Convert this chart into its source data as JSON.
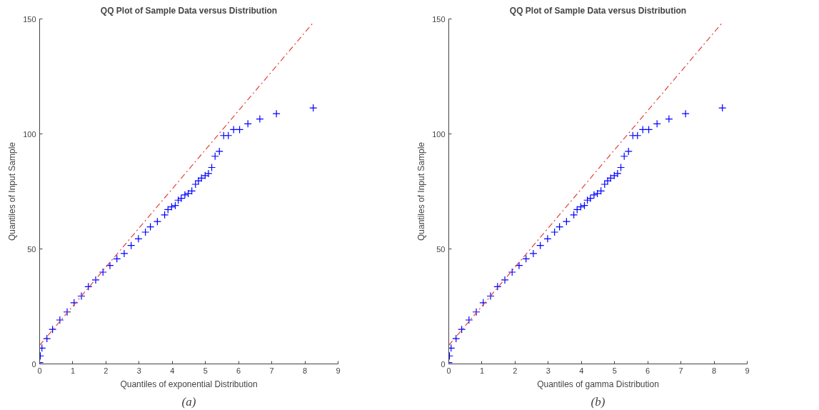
{
  "chart_data": [
    {
      "type": "scatter",
      "title": "QQ Plot of Sample Data versus Distribution",
      "xlabel": "Quantiles of exponential Distribution",
      "ylabel": "Quantiles of Input Sample",
      "annotations": [
        "(a)"
      ],
      "xlim": [
        0,
        9
      ],
      "ylim": [
        0,
        150
      ],
      "xticks": [
        0,
        1,
        2,
        3,
        4,
        5,
        6,
        7,
        8,
        9
      ],
      "yticks": [
        0,
        50,
        100,
        150
      ],
      "grid": false,
      "series": [
        {
          "marker": "cross",
          "color": "#0000ff",
          "x": [
            0,
            0.02,
            0.07,
            0.22,
            0.39,
            0.61,
            0.83,
            1.04,
            1.26,
            1.47,
            1.69,
            1.91,
            2.12,
            2.33,
            2.55,
            2.76,
            2.98,
            3.19,
            3.34,
            3.55,
            3.77,
            3.87,
            3.98,
            4.09,
            4.18,
            4.27,
            4.38,
            4.48,
            4.59,
            4.7,
            4.79,
            4.88,
            4.99,
            5.09,
            5.19,
            5.29,
            5.42,
            5.55,
            5.69,
            5.85,
            6.03,
            6.28,
            6.64,
            7.14,
            8.25
          ],
          "values": [
            0.6,
            3.5,
            6.9,
            11,
            15,
            19.1,
            22.6,
            26.6,
            29.5,
            33.6,
            36.5,
            39.9,
            42.8,
            45.7,
            48,
            51.5,
            54.4,
            57.3,
            59.6,
            61.9,
            64.8,
            67.1,
            68.3,
            68.9,
            71.2,
            72,
            73.5,
            74.1,
            75.2,
            78.1,
            79.6,
            80.8,
            81.9,
            82.8,
            85.4,
            90.3,
            92.4,
            99.3,
            99.3,
            101.9,
            101.9,
            104.4,
            106.5,
            108.8,
            111.3
          ]
        },
        {
          "type": "line",
          "marker": "none",
          "color": "#e0403a",
          "line_style": "dashed",
          "x": [
            0,
            8.25
          ],
          "values": [
            8.1,
            148.4
          ]
        }
      ]
    },
    {
      "type": "scatter",
      "title": "QQ Plot of Sample Data versus Distribution",
      "xlabel": "Quantiles of gamma Distribution",
      "ylabel": "Quantiles of Input Sample",
      "annotations": [
        "(b)"
      ],
      "xlim": [
        0,
        9
      ],
      "ylim": [
        0,
        150
      ],
      "xticks": [
        0,
        1,
        2,
        3,
        4,
        5,
        6,
        7,
        8,
        9
      ],
      "yticks": [
        0,
        50,
        100,
        150
      ],
      "grid": false,
      "series": [
        {
          "marker": "cross",
          "color": "#0000ff",
          "x": [
            0,
            0.02,
            0.07,
            0.22,
            0.39,
            0.61,
            0.83,
            1.04,
            1.26,
            1.47,
            1.69,
            1.91,
            2.12,
            2.33,
            2.55,
            2.76,
            2.98,
            3.19,
            3.34,
            3.55,
            3.77,
            3.87,
            3.98,
            4.09,
            4.18,
            4.27,
            4.38,
            4.48,
            4.59,
            4.7,
            4.79,
            4.88,
            4.99,
            5.09,
            5.19,
            5.29,
            5.42,
            5.55,
            5.69,
            5.85,
            6.03,
            6.28,
            6.64,
            7.14,
            8.25
          ],
          "values": [
            0.6,
            3.5,
            6.9,
            11,
            15,
            19.1,
            22.6,
            26.6,
            29.5,
            33.6,
            36.5,
            39.9,
            42.8,
            45.7,
            48,
            51.5,
            54.4,
            57.3,
            59.6,
            61.9,
            64.8,
            67.1,
            68.3,
            68.9,
            71.2,
            72,
            73.5,
            74.1,
            75.2,
            78.1,
            79.6,
            80.8,
            81.9,
            82.8,
            85.4,
            90.3,
            92.4,
            99.3,
            99.3,
            101.9,
            101.9,
            104.4,
            106.5,
            108.8,
            111.3
          ]
        },
        {
          "type": "line",
          "marker": "none",
          "color": "#e0403a",
          "line_style": "dashed",
          "x": [
            0,
            8.25
          ],
          "values": [
            8.1,
            148.4
          ]
        }
      ]
    }
  ]
}
